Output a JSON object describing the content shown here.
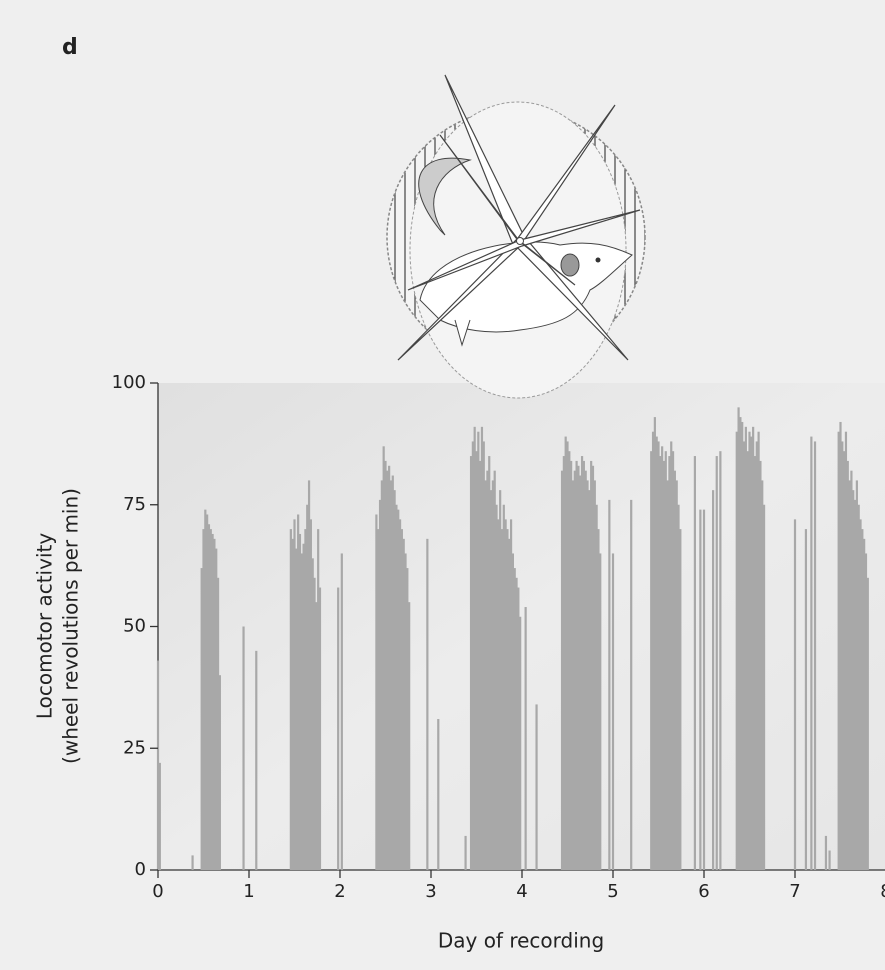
{
  "chart_data": {
    "type": "bar",
    "panel_label": "d",
    "xlabel": "Day of recording",
    "ylabel": [
      "Locomotor activity",
      "(wheel revolutions per min)"
    ],
    "color": "#a8a8a8",
    "xlim": [
      0,
      8
    ],
    "xticks": [
      0,
      1,
      2,
      3,
      4,
      5,
      6,
      7,
      8
    ],
    "ylim": [
      0,
      100
    ],
    "yticks": [
      0,
      25,
      50,
      75,
      100
    ],
    "x": [
      0,
      0.02,
      0.38,
      0.48,
      0.5,
      0.52,
      0.54,
      0.56,
      0.58,
      0.6,
      0.62,
      0.64,
      0.66,
      0.68,
      0.94,
      1.08,
      1.46,
      1.48,
      1.5,
      1.52,
      1.54,
      1.56,
      1.58,
      1.6,
      1.62,
      1.64,
      1.66,
      1.68,
      1.7,
      1.72,
      1.74,
      1.76,
      1.78,
      1.98,
      2.02,
      2.4,
      2.42,
      2.44,
      2.46,
      2.48,
      2.5,
      2.52,
      2.54,
      2.56,
      2.58,
      2.6,
      2.62,
      2.64,
      2.66,
      2.68,
      2.7,
      2.72,
      2.74,
      2.76,
      2.96,
      3.08,
      3.38,
      3.44,
      3.46,
      3.48,
      3.5,
      3.52,
      3.54,
      3.56,
      3.58,
      3.6,
      3.62,
      3.64,
      3.66,
      3.68,
      3.7,
      3.72,
      3.74,
      3.76,
      3.78,
      3.8,
      3.82,
      3.84,
      3.86,
      3.88,
      3.9,
      3.92,
      3.94,
      3.96,
      3.98,
      4.04,
      4.16,
      4.44,
      4.46,
      4.48,
      4.5,
      4.52,
      4.54,
      4.56,
      4.58,
      4.6,
      4.62,
      4.64,
      4.66,
      4.68,
      4.7,
      4.72,
      4.74,
      4.76,
      4.78,
      4.8,
      4.82,
      4.84,
      4.86,
      4.96,
      5.0,
      5.2,
      5.42,
      5.44,
      5.46,
      5.48,
      5.5,
      5.52,
      5.54,
      5.56,
      5.58,
      5.6,
      5.62,
      5.64,
      5.66,
      5.68,
      5.7,
      5.72,
      5.74,
      5.9,
      5.96,
      6.0,
      6.1,
      6.14,
      6.18,
      6.36,
      6.38,
      6.4,
      6.42,
      6.44,
      6.46,
      6.48,
      6.5,
      6.52,
      6.54,
      6.56,
      6.58,
      6.6,
      6.62,
      6.64,
      6.66,
      7.0,
      7.12,
      7.18,
      7.22,
      7.34,
      7.38,
      7.48,
      7.5,
      7.52,
      7.54,
      7.56,
      7.58,
      7.6,
      7.62,
      7.64,
      7.66,
      7.68,
      7.7,
      7.72,
      7.74,
      7.76,
      7.78,
      7.8
    ],
    "values": [
      43,
      22,
      3,
      62,
      70,
      74,
      73,
      71,
      70,
      69,
      68,
      66,
      60,
      40,
      50,
      45,
      70,
      68,
      72,
      66,
      73,
      69,
      65,
      67,
      70,
      75,
      80,
      72,
      64,
      60,
      55,
      70,
      58,
      58,
      65,
      73,
      70,
      76,
      80,
      87,
      84,
      82,
      83,
      80,
      81,
      78,
      75,
      74,
      72,
      70,
      68,
      65,
      62,
      55,
      68,
      31,
      7,
      85,
      88,
      91,
      86,
      90,
      84,
      91,
      88,
      80,
      82,
      85,
      78,
      80,
      82,
      75,
      72,
      78,
      70,
      75,
      72,
      70,
      68,
      72,
      65,
      62,
      60,
      58,
      52,
      54,
      34,
      82,
      85,
      89,
      88,
      86,
      84,
      80,
      82,
      84,
      83,
      81,
      85,
      84,
      82,
      80,
      78,
      84,
      83,
      80,
      75,
      70,
      65,
      76,
      65,
      76,
      86,
      90,
      93,
      89,
      88,
      85,
      87,
      84,
      86,
      80,
      85,
      88,
      86,
      82,
      80,
      75,
      70,
      85,
      74,
      74,
      78,
      85,
      86,
      90,
      95,
      93,
      92,
      88,
      91,
      86,
      90,
      89,
      91,
      85,
      88,
      90,
      84,
      80,
      75,
      72,
      70,
      89,
      88,
      7,
      4,
      90,
      92,
      88,
      86,
      90,
      84,
      80,
      82,
      78,
      76,
      80,
      75,
      72,
      70,
      68,
      65,
      60
    ]
  }
}
